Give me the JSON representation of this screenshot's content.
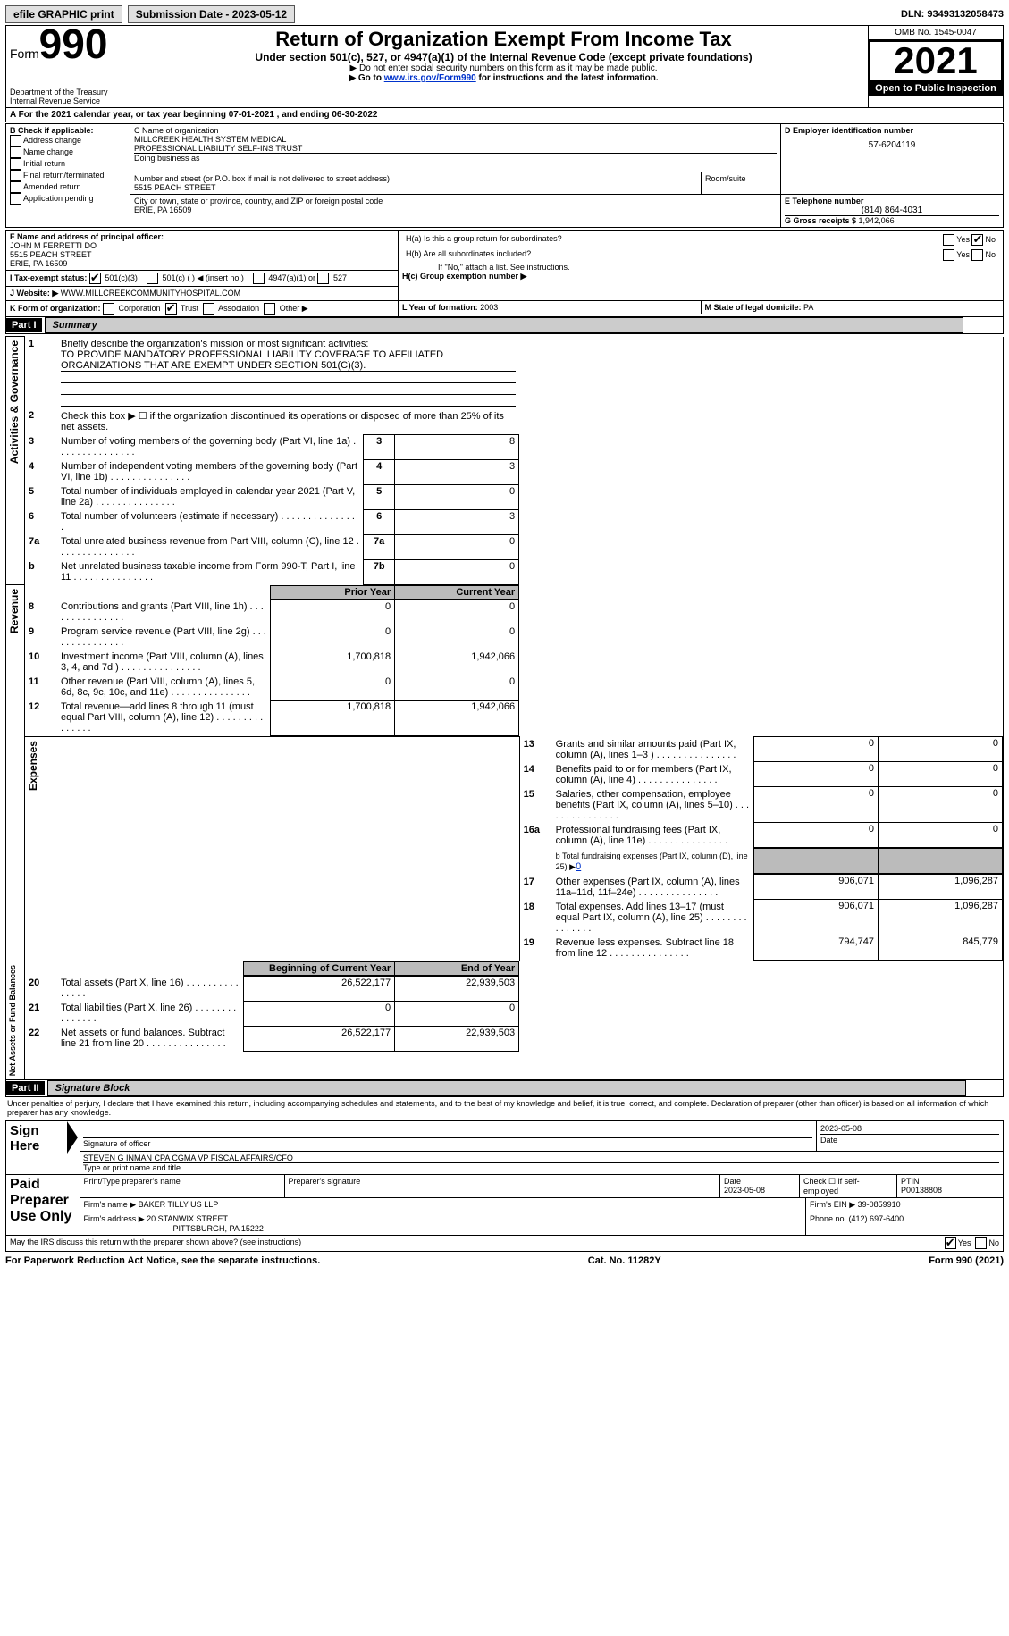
{
  "topbar": {
    "efile": "efile GRAPHIC print",
    "submission_label": "Submission Date - ",
    "submission_date": "2023-05-12",
    "dln_label": "DLN: ",
    "dln": "93493132058473"
  },
  "header": {
    "form_word": "Form",
    "form_number": "990",
    "dept1": "Department of the Treasury",
    "dept2": "Internal Revenue Service",
    "title": "Return of Organization Exempt From Income Tax",
    "subtitle": "Under section 501(c), 527, or 4947(a)(1) of the Internal Revenue Code (except private foundations)",
    "note1": "▶ Do not enter social security numbers on this form as it may be made public.",
    "note2_pre": "▶ Go to ",
    "note2_link": "www.irs.gov/Form990",
    "note2_post": " for instructions and the latest information.",
    "omb": "OMB No. 1545-0047",
    "year": "2021",
    "open": "Open to Public Inspection"
  },
  "A": {
    "text_pre": "A For the 2021 calendar year, or tax year beginning ",
    "begin": "07-01-2021",
    "mid": "    , and ending ",
    "end": "06-30-2022"
  },
  "B": {
    "label": "B Check if applicable:",
    "opts": [
      "Address change",
      "Name change",
      "Initial return",
      "Final return/terminated",
      "Amended return",
      "Application pending"
    ]
  },
  "C": {
    "name_label": "C Name of organization",
    "name1": "MILLCREEK HEALTH SYSTEM MEDICAL",
    "name2": "PROFESSIONAL LIABILITY SELF-INS TRUST",
    "dba_label": "Doing business as",
    "street_label": "Number and street (or P.O. box if mail is not delivered to street address)",
    "room_label": "Room/suite",
    "street": "5515 PEACH STREET",
    "city_label": "City or town, state or province, country, and ZIP or foreign postal code",
    "city": "ERIE, PA  16509"
  },
  "D": {
    "label": "D Employer identification number",
    "value": "57-6204119"
  },
  "E": {
    "label": "E Telephone number",
    "value": "(814) 864-4031"
  },
  "G": {
    "label": "G Gross receipts $ ",
    "value": "1,942,066"
  },
  "F": {
    "label": "F  Name and address of principal officer:",
    "name": "JOHN M FERRETTI DO",
    "street": "5515 PEACH STREET",
    "city": "ERIE, PA  16509"
  },
  "H": {
    "a": "H(a)  Is this a group return for subordinates?",
    "b": "H(b)  Are all subordinates included?",
    "b_note": "If \"No,\" attach a list. See instructions.",
    "c": "H(c)  Group exemption number ▶",
    "yes": "Yes",
    "no": "No"
  },
  "I": {
    "label": "I    Tax-exempt status:",
    "o1": "501(c)(3)",
    "o2": "501(c) (   ) ◀ (insert no.)",
    "o3": "4947(a)(1) or",
    "o4": "527"
  },
  "J": {
    "label": "J    Website: ▶",
    "value": "WWW.MILLCREEKCOMMUNITYHOSPITAL.COM"
  },
  "K": {
    "label": "K Form of organization:",
    "o1": "Corporation",
    "o2": "Trust",
    "o3": "Association",
    "o4": "Other ▶"
  },
  "L": {
    "label": "L Year of formation: ",
    "value": "2003"
  },
  "M": {
    "label": "M State of legal domicile: ",
    "value": "PA"
  },
  "part1": {
    "num": "Part I",
    "title": "Summary"
  },
  "summary": {
    "l1_label": "Briefly describe the organization's mission or most significant activities:",
    "l1_text": "TO PROVIDE MANDATORY PROFESSIONAL LIABILITY COVERAGE TO AFFILIATED ORGANIZATIONS THAT ARE EXEMPT UNDER SECTION 501(C)(3).",
    "l2": "Check this box ▶ ☐  if the organization discontinued its operations or disposed of more than 25% of its net assets.",
    "rows_simple": [
      {
        "n": "3",
        "t": "Number of voting members of the governing body (Part VI, line 1a)",
        "b": "3",
        "v": "8"
      },
      {
        "n": "4",
        "t": "Number of independent voting members of the governing body (Part VI, line 1b)",
        "b": "4",
        "v": "3"
      },
      {
        "n": "5",
        "t": "Total number of individuals employed in calendar year 2021 (Part V, line 2a)",
        "b": "5",
        "v": "0"
      },
      {
        "n": "6",
        "t": "Total number of volunteers (estimate if necessary)",
        "b": "6",
        "v": "3"
      },
      {
        "n": "7a",
        "t": "Total unrelated business revenue from Part VIII, column (C), line 12",
        "b": "7a",
        "v": "0"
      },
      {
        "n": "b",
        "t": "Net unrelated business taxable income from Form 990-T, Part I, line 11",
        "b": "7b",
        "v": "0"
      }
    ],
    "col_prior": "Prior Year",
    "col_current": "Current Year",
    "rows_rev": [
      {
        "n": "8",
        "t": "Contributions and grants (Part VIII, line 1h)",
        "p": "0",
        "c": "0"
      },
      {
        "n": "9",
        "t": "Program service revenue (Part VIII, line 2g)",
        "p": "0",
        "c": "0"
      },
      {
        "n": "10",
        "t": "Investment income (Part VIII, column (A), lines 3, 4, and 7d )",
        "p": "1,700,818",
        "c": "1,942,066"
      },
      {
        "n": "11",
        "t": "Other revenue (Part VIII, column (A), lines 5, 6d, 8c, 9c, 10c, and 11e)",
        "p": "0",
        "c": "0"
      },
      {
        "n": "12",
        "t": "Total revenue—add lines 8 through 11 (must equal Part VIII, column (A), line 12)",
        "p": "1,700,818",
        "c": "1,942,066"
      }
    ],
    "rows_exp": [
      {
        "n": "13",
        "t": "Grants and similar amounts paid (Part IX, column (A), lines 1–3 )",
        "p": "0",
        "c": "0"
      },
      {
        "n": "14",
        "t": "Benefits paid to or for members (Part IX, column (A), line 4)",
        "p": "0",
        "c": "0"
      },
      {
        "n": "15",
        "t": "Salaries, other compensation, employee benefits (Part IX, column (A), lines 5–10)",
        "p": "0",
        "c": "0"
      },
      {
        "n": "16a",
        "t": "Professional fundraising fees (Part IX, column (A), line 11e)",
        "p": "0",
        "c": "0"
      }
    ],
    "l16b_pre": "b  Total fundraising expenses (Part IX, column (D), line 25) ▶",
    "l16b_val": "0",
    "rows_exp2": [
      {
        "n": "17",
        "t": "Other expenses (Part IX, column (A), lines 11a–11d, 11f–24e)",
        "p": "906,071",
        "c": "1,096,287"
      },
      {
        "n": "18",
        "t": "Total expenses. Add lines 13–17 (must equal Part IX, column (A), line 25)",
        "p": "906,071",
        "c": "1,096,287"
      },
      {
        "n": "19",
        "t": "Revenue less expenses. Subtract line 18 from line 12",
        "p": "794,747",
        "c": "845,779"
      }
    ],
    "col_begin": "Beginning of Current Year",
    "col_end": "End of Year",
    "rows_net": [
      {
        "n": "20",
        "t": "Total assets (Part X, line 16)",
        "p": "26,522,177",
        "c": "22,939,503"
      },
      {
        "n": "21",
        "t": "Total liabilities (Part X, line 26)",
        "p": "0",
        "c": "0"
      },
      {
        "n": "22",
        "t": "Net assets or fund balances. Subtract line 21 from line 20",
        "p": "26,522,177",
        "c": "22,939,503"
      }
    ],
    "side_act": "Activities & Governance",
    "side_rev": "Revenue",
    "side_exp": "Expenses",
    "side_net": "Net Assets or Fund Balances"
  },
  "part2": {
    "num": "Part II",
    "title": "Signature Block"
  },
  "sig": {
    "declaration": "Under penalties of perjury, I declare that I have examined this return, including accompanying schedules and statements, and to the best of my knowledge and belief, it is true, correct, and complete. Declaration of preparer (other than officer) is based on all information of which preparer has any knowledge.",
    "sign_here": "Sign Here",
    "sig_officer": "Signature of officer",
    "sig_date": "2023-05-08",
    "date_label": "Date",
    "name_title": "STEVEN G INMAN CPA CGMA  VP FISCAL AFFAIRS/CFO",
    "name_title_label": "Type or print name and title",
    "paid": "Paid Preparer Use Only",
    "col_print": "Print/Type preparer's name",
    "col_sig": "Preparer's signature",
    "col_date": "Date",
    "prep_date": "2023-05-08",
    "col_check": "Check ☐ if self-employed",
    "col_ptin": "PTIN",
    "ptin": "P00138808",
    "firm_name_label": "Firm's name     ▶ ",
    "firm_name": "BAKER TILLY US LLP",
    "firm_ein_label": "Firm's EIN ▶ ",
    "firm_ein": "39-0859910",
    "firm_addr_label": "Firm's address ▶ ",
    "firm_addr1": "20 STANWIX STREET",
    "firm_addr2": "PITTSBURGH, PA  15222",
    "phone_label": "Phone no. ",
    "phone": "(412) 697-6400",
    "discuss": "May the IRS discuss this return with the preparer shown above? (see instructions)",
    "yes": "Yes",
    "no": "No"
  },
  "footer": {
    "left": "For Paperwork Reduction Act Notice, see the separate instructions.",
    "mid": "Cat. No. 11282Y",
    "right": "Form 990 (2021)"
  }
}
